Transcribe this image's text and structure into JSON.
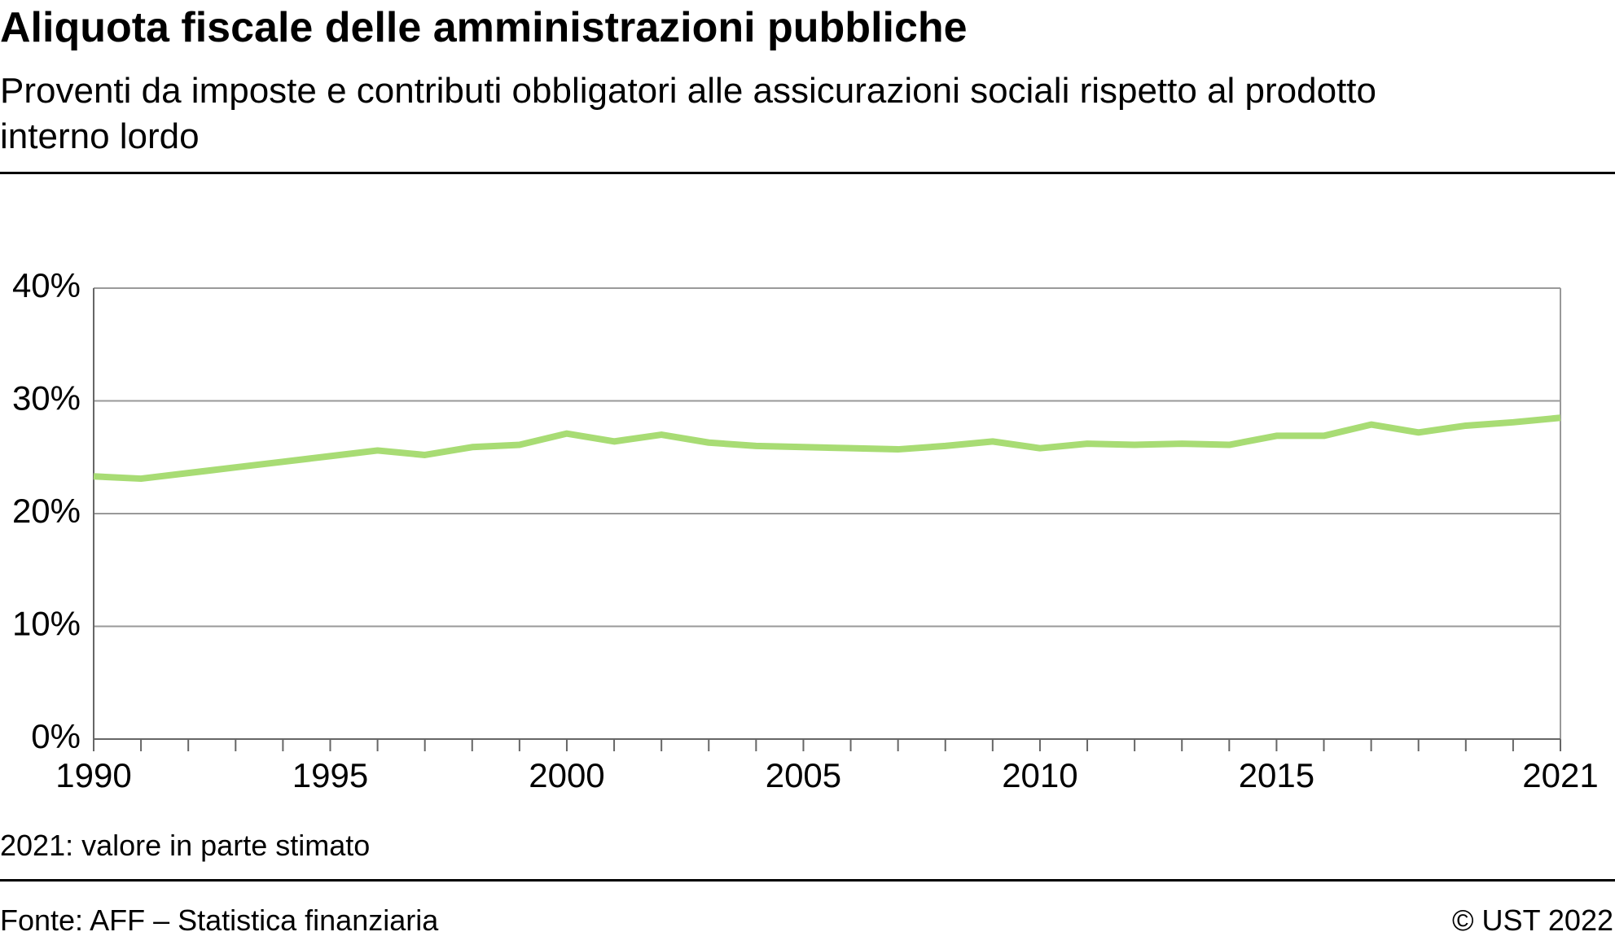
{
  "chart_data": {
    "type": "line",
    "title": "Aliquota fiscale delle amministrazioni pubbliche",
    "subtitle": "Proventi da imposte e contributi obbligatori alle assicurazioni sociali rispetto al prodotto interno lordo",
    "x": [
      1990,
      1991,
      1992,
      1993,
      1994,
      1995,
      1996,
      1997,
      1998,
      1999,
      2000,
      2001,
      2002,
      2003,
      2004,
      2005,
      2006,
      2007,
      2008,
      2009,
      2010,
      2011,
      2012,
      2013,
      2014,
      2015,
      2016,
      2017,
      2018,
      2019,
      2020,
      2021
    ],
    "series": [
      {
        "color": "#a8dc74",
        "values": [
          23.3,
          23.1,
          23.6,
          24.1,
          24.6,
          25.1,
          25.6,
          25.2,
          25.9,
          26.1,
          27.1,
          26.4,
          27.0,
          26.3,
          26.0,
          25.9,
          25.8,
          25.7,
          26.0,
          26.4,
          25.8,
          26.2,
          26.1,
          26.2,
          26.1,
          26.9,
          26.9,
          27.9,
          27.2,
          27.8,
          28.1,
          28.5
        ]
      }
    ],
    "xlim": [
      1990,
      2021
    ],
    "xticks": [
      1990,
      1995,
      2000,
      2005,
      2010,
      2015,
      2021
    ],
    "ylim": [
      0,
      40
    ],
    "yticks": [
      {
        "value": 0,
        "label": "0%"
      },
      {
        "value": 10,
        "label": "10%"
      },
      {
        "value": 20,
        "label": "20%"
      },
      {
        "value": 30,
        "label": "30%"
      },
      {
        "value": 40,
        "label": "40%"
      }
    ],
    "grid": true,
    "note": "2021: valore in parte stimato",
    "source": "Fonte: AFF – Statistica finanziaria",
    "copyright": "© UST 2022"
  }
}
